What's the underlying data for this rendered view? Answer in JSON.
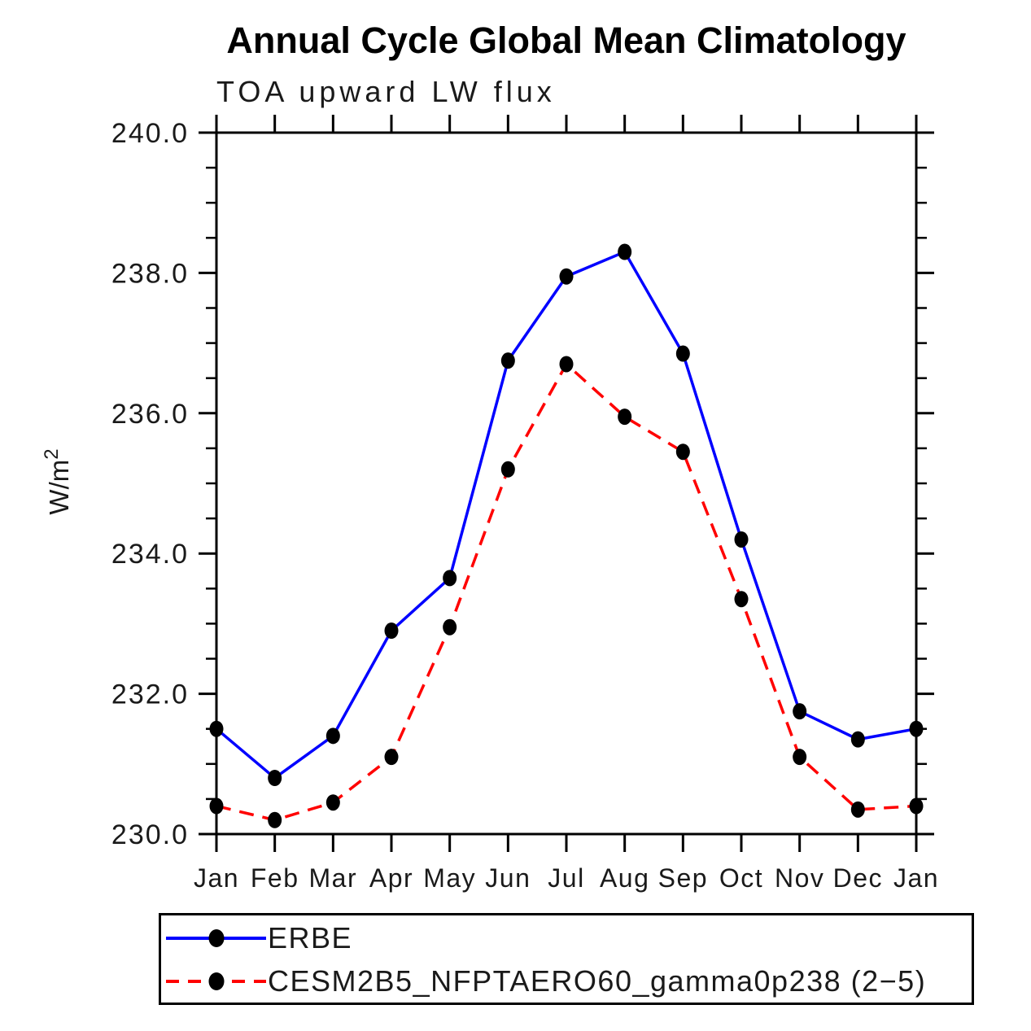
{
  "title": "Annual Cycle Global Mean Climatology",
  "subtitle": "TOA upward LW flux",
  "ylabel": {
    "base": "W/m",
    "sup": "2"
  },
  "legend": {
    "entries": [
      {
        "label": "ERBE",
        "color": "#0000ff",
        "line_style": "solid",
        "marker": "filled-black-circle"
      },
      {
        "label": "CESM2B5_NFPTAERO60_gamma0p238 (2−5)",
        "color": "#ff0000",
        "line_style": "dashed",
        "marker": "filled-black-circle"
      }
    ]
  },
  "chart_data": {
    "type": "line",
    "title": "Annual Cycle Global Mean Climatology",
    "subtitle": "TOA upward LW flux",
    "ylabel": "W/m²",
    "categories": [
      "Jan",
      "Feb",
      "Mar",
      "Apr",
      "May",
      "Jun",
      "Jul",
      "Aug",
      "Sep",
      "Oct",
      "Nov",
      "Dec",
      "Jan"
    ],
    "series": [
      {
        "name": "ERBE",
        "color": "#0000ff",
        "line_style": "solid",
        "marker": "filled-black-circle",
        "values": [
          231.5,
          230.8,
          231.4,
          232.9,
          233.65,
          236.75,
          237.95,
          238.3,
          236.85,
          234.2,
          231.75,
          231.35,
          231.5
        ]
      },
      {
        "name": "CESM2B5_NFPTAERO60_gamma0p238 (2−5)",
        "color": "#ff0000",
        "line_style": "dashed",
        "marker": "filled-black-circle",
        "values": [
          230.4,
          230.2,
          230.45,
          231.1,
          232.95,
          235.2,
          236.7,
          235.95,
          235.45,
          233.35,
          231.1,
          230.35,
          230.4
        ]
      }
    ],
    "ylim": [
      230.0,
      240.0
    ],
    "ytick_major": [
      230.0,
      232.0,
      234.0,
      236.0,
      238.0,
      240.0
    ],
    "ytick_labels": [
      "230.0",
      "232.0",
      "234.0",
      "236.0",
      "238.0",
      "240.0"
    ],
    "ytick_minor_step": 0.5,
    "grid": false,
    "legend_position": "bottom",
    "axis_color": "#000000",
    "marker_color": "#000000"
  }
}
